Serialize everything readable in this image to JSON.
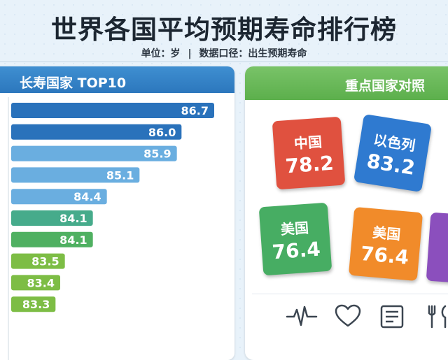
{
  "title": "世界各国平均预期寿命排行榜",
  "subtitle": {
    "unit": "单位：岁",
    "sep": "|",
    "caliber": "数据口径：出生预期寿命"
  },
  "left_panel": {
    "title": "长寿国家 TOP10"
  },
  "right_panel": {
    "title": "重点国家对照",
    "tiles": [
      {
        "country": "中国",
        "value": "78.2"
      },
      {
        "country": "以色列",
        "value": "83.2"
      },
      {
        "country": "美国",
        "value": "76.4"
      },
      {
        "country": "美国",
        "value": "76.4"
      },
      {
        "country": "",
        "value": ""
      }
    ]
  },
  "icons": [
    "heartbeat-icon",
    "heart-icon",
    "report-icon",
    "utensils-icon"
  ],
  "colors": [
    "#2a72bb",
    "#2a72bb",
    "#6aaee0",
    "#6aaee0",
    "#6aaee0",
    "#46ab8b",
    "#4fb061",
    "#7dbd45",
    "#7dbd45",
    "#7dbd45"
  ],
  "chart_data": {
    "type": "bar",
    "orientation": "horizontal",
    "categories": [
      "",
      "",
      "",
      "",
      "",
      "",
      "",
      "",
      "",
      ""
    ],
    "values": [
      86.7,
      86.0,
      85.9,
      85.1,
      84.4,
      84.1,
      84.1,
      83.5,
      83.4,
      83.3
    ],
    "title": "长寿国家 TOP10"
  }
}
